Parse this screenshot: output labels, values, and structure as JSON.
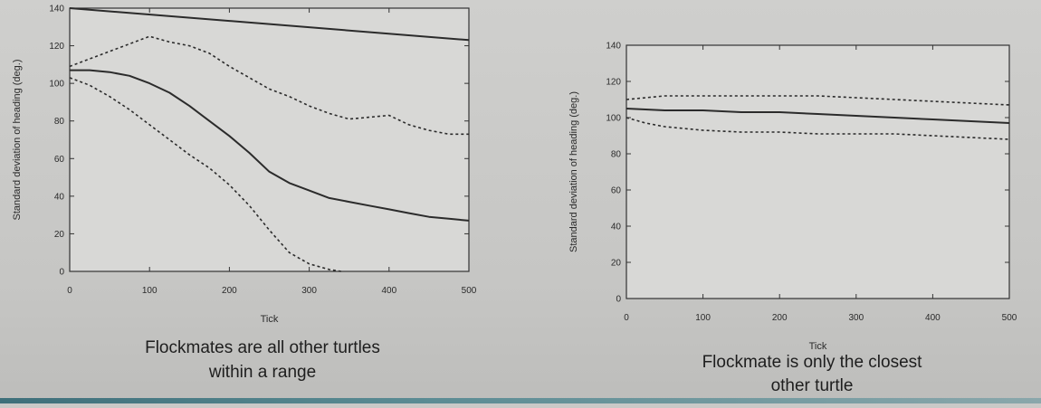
{
  "chart_data": [
    {
      "type": "line",
      "xlabel": "Tick",
      "ylabel": "Standard deviation of heading (deg.)",
      "xlim": [
        0,
        500
      ],
      "ylim": [
        0,
        140
      ],
      "x_ticks": [
        0,
        100,
        200,
        300,
        400,
        500
      ],
      "y_ticks": [
        0,
        20,
        40,
        60,
        80,
        100,
        120,
        140
      ],
      "grid": false,
      "caption_lines": [
        "Flockmates are all other turtles",
        "within a range"
      ],
      "series": [
        {
          "style": "solid",
          "x": [
            0,
            25,
            50,
            75,
            100,
            125,
            150,
            175,
            200,
            225,
            250,
            275,
            300,
            325,
            350,
            375,
            400,
            425,
            450,
            475,
            500
          ],
          "values": [
            107,
            107,
            106,
            104,
            100,
            95,
            88,
            80,
            72,
            63,
            53,
            47,
            43,
            39,
            37,
            35,
            33,
            31,
            29,
            28,
            27
          ]
        },
        {
          "style": "dashed",
          "x": [
            0,
            25,
            50,
            75,
            100,
            125,
            150,
            175,
            200,
            225,
            250,
            275,
            300,
            325,
            350,
            375,
            400,
            425,
            450,
            475,
            500
          ],
          "values": [
            109,
            113,
            117,
            121,
            125,
            122,
            120,
            116,
            109,
            103,
            97,
            93,
            88,
            84,
            81,
            82,
            83,
            78,
            75,
            73,
            73
          ]
        },
        {
          "style": "dashed",
          "x": [
            0,
            25,
            50,
            75,
            100,
            125,
            150,
            175,
            200,
            225,
            250,
            275,
            300,
            325,
            340
          ],
          "values": [
            103,
            99,
            93,
            86,
            78,
            70,
            62,
            55,
            46,
            35,
            22,
            10,
            4,
            1,
            0
          ]
        },
        {
          "style": "solid",
          "x": [
            0,
            500
          ],
          "values": [
            140,
            123
          ]
        }
      ]
    },
    {
      "type": "line",
      "xlabel": "Tick",
      "ylabel": "Standard deviation of heading (deg.)",
      "xlim": [
        0,
        500
      ],
      "ylim": [
        0,
        140
      ],
      "x_ticks": [
        0,
        100,
        200,
        300,
        400,
        500
      ],
      "y_ticks": [
        0,
        20,
        40,
        60,
        80,
        100,
        120,
        140
      ],
      "grid": false,
      "caption_lines": [
        "Flockmate is only the closest",
        "other turtle"
      ],
      "series": [
        {
          "style": "solid",
          "x": [
            0,
            50,
            100,
            150,
            200,
            250,
            300,
            350,
            400,
            450,
            500
          ],
          "values": [
            105,
            104,
            104,
            103,
            103,
            102,
            101,
            100,
            99,
            98,
            97
          ]
        },
        {
          "style": "dashed",
          "x": [
            0,
            25,
            50,
            100,
            150,
            200,
            250,
            300,
            350,
            400,
            450,
            500
          ],
          "values": [
            110,
            111,
            112,
            112,
            112,
            112,
            112,
            111,
            110,
            109,
            108,
            107
          ]
        },
        {
          "style": "dashed",
          "x": [
            0,
            25,
            50,
            100,
            150,
            200,
            250,
            300,
            350,
            400,
            450,
            500
          ],
          "values": [
            100,
            97,
            95,
            93,
            92,
            92,
            91,
            91,
            91,
            90,
            89,
            88
          ]
        }
      ]
    }
  ]
}
